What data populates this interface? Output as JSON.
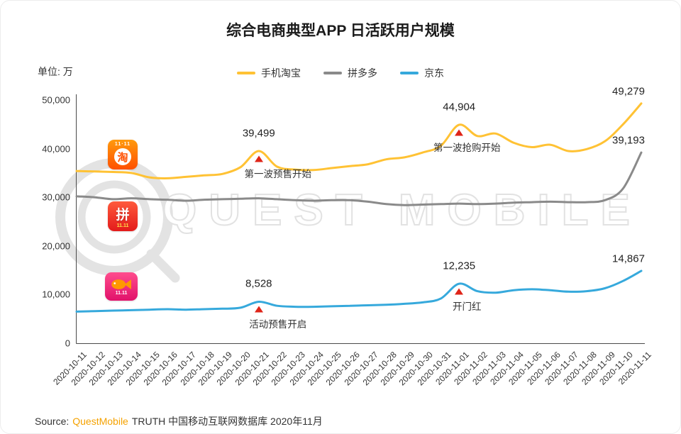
{
  "title": "综合电商典型APP 日活跃用户规模",
  "unit_label": "单位: 万",
  "watermark": "QUEST MOBILE",
  "source": {
    "prefix": "Source:",
    "brand": "QuestMobile",
    "rest": "TRUTH 中国移动互联网数据库 2020年11月"
  },
  "icons": {
    "taobao": {
      "banner": "11·11",
      "glyph": "淘"
    },
    "pinduoduo": {
      "glyph": "拼",
      "banner": "11.11"
    },
    "jd": {
      "banner": "11.11"
    }
  },
  "chart_data": {
    "type": "line",
    "title": "综合电商典型APP 日活跃用户规模",
    "unit": "万",
    "grid": false,
    "legend_position": "top",
    "ylim": [
      0,
      50000
    ],
    "ytick_values": [
      0,
      10000,
      20000,
      30000,
      40000,
      50000
    ],
    "ytick_labels": [
      "0",
      "10,000",
      "20,000",
      "30,000",
      "40,000",
      "50,000"
    ],
    "x": [
      "2020-10-11",
      "2020-10-12",
      "2020-10-13",
      "2020-10-14",
      "2020-10-15",
      "2020-10-16",
      "2020-10-17",
      "2020-10-18",
      "2020-10-19",
      "2020-10-20",
      "2020-10-21",
      "2020-10-22",
      "2020-10-23",
      "2020-10-24",
      "2020-10-25",
      "2020-10-26",
      "2020-10-27",
      "2020-10-28",
      "2020-10-29",
      "2020-10-30",
      "2020-10-31",
      "2020-11-01",
      "2020-11-02",
      "2020-11-03",
      "2020-11-04",
      "2020-11-05",
      "2020-11-06",
      "2020-11-07",
      "2020-11-08",
      "2020-11-09",
      "2020-11-10",
      "2020-11-11"
    ],
    "series": [
      {
        "name": "手机淘宝",
        "color": "#FFC234",
        "values": [
          35400,
          35300,
          35200,
          35000,
          34100,
          33900,
          34200,
          34500,
          34800,
          36200,
          39499,
          36300,
          35700,
          35600,
          36000,
          36400,
          36800,
          37800,
          38200,
          39200,
          40600,
          44904,
          42600,
          43100,
          41200,
          40300,
          40800,
          39500,
          39900,
          41500,
          45000,
          49279
        ]
      },
      {
        "name": "拼多多",
        "color": "#8A8A8A",
        "values": [
          30200,
          30000,
          29600,
          29800,
          29600,
          29500,
          29300,
          29500,
          29600,
          29700,
          29800,
          29600,
          29400,
          29300,
          29400,
          29400,
          29100,
          28600,
          28400,
          28500,
          28600,
          28700,
          28600,
          28700,
          28900,
          29000,
          29100,
          29000,
          29000,
          29400,
          31800,
          39193
        ]
      },
      {
        "name": "京东",
        "color": "#36A9DC",
        "values": [
          6500,
          6600,
          6700,
          6800,
          6900,
          7000,
          6900,
          7000,
          7100,
          7300,
          8528,
          7700,
          7500,
          7500,
          7600,
          7700,
          7800,
          7900,
          8100,
          8400,
          9200,
          12235,
          10700,
          10400,
          10900,
          11100,
          10900,
          10600,
          10700,
          11300,
          12800,
          14867
        ]
      }
    ]
  },
  "annotations": [
    {
      "date": "2020-10-21",
      "series": "手机淘宝",
      "value_label": "39,499",
      "note": "第一波预售开始",
      "note_pos": "below-right",
      "marker": true
    },
    {
      "date": "2020-11-01",
      "series": "手机淘宝",
      "value_label": "44,904",
      "note": "第一波抢购开始",
      "note_pos": "right-below",
      "marker": true
    },
    {
      "date": "2020-10-21",
      "series": "京东",
      "value_label": "8,528",
      "note": "活动预售开启",
      "note_pos": "below-right",
      "marker": true
    },
    {
      "date": "2020-11-01",
      "series": "京东",
      "value_label": "12,235",
      "note": "开门红",
      "note_pos": "right-below",
      "marker": true
    },
    {
      "date": "2020-11-11",
      "series": "手机淘宝",
      "value_label": "49,279",
      "marker": false
    },
    {
      "date": "2020-11-11",
      "series": "拼多多",
      "value_label": "39,193",
      "marker": false
    },
    {
      "date": "2020-11-11",
      "series": "京东",
      "value_label": "14,867",
      "marker": false
    }
  ]
}
